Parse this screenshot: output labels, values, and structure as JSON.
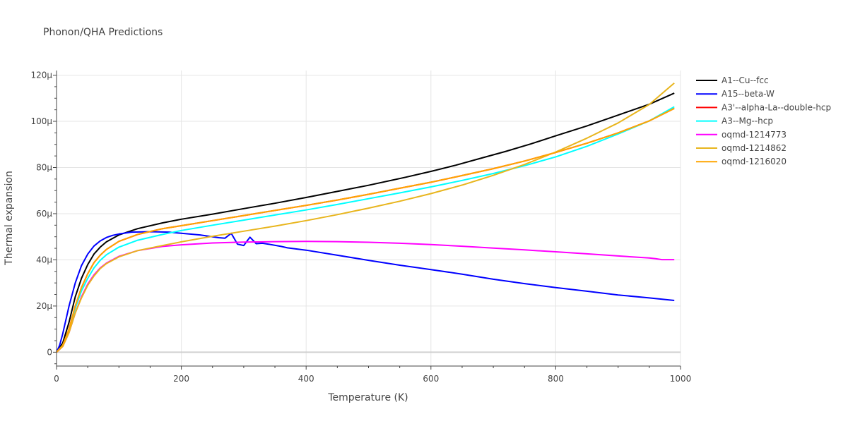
{
  "chart_data": {
    "type": "line",
    "title": "Phonon/QHA Predictions",
    "xlabel": "Temperature (K)",
    "ylabel": "Thermal expansion",
    "xlim": [
      0,
      1000
    ],
    "ylim": [
      -6,
      122
    ],
    "x_ticks": [
      0,
      200,
      400,
      600,
      800,
      1000
    ],
    "x_tick_labels": [
      "0",
      "200",
      "400",
      "600",
      "800",
      "1000"
    ],
    "y_ticks": [
      0,
      20,
      40,
      60,
      80,
      100,
      120
    ],
    "y_tick_labels": [
      "0",
      "20μ",
      "40μ",
      "60μ",
      "80μ",
      "100μ",
      "120μ"
    ],
    "grid": true,
    "legend_position": "right",
    "series": [
      {
        "name": "A1--Cu--fcc",
        "color": "#000000",
        "points": [
          [
            0,
            0
          ],
          [
            10,
            4
          ],
          [
            20,
            13
          ],
          [
            30,
            24
          ],
          [
            40,
            32
          ],
          [
            50,
            38
          ],
          [
            60,
            42.5
          ],
          [
            70,
            45.5
          ],
          [
            80,
            47.8
          ],
          [
            100,
            50.8
          ],
          [
            130,
            53.5
          ],
          [
            170,
            56
          ],
          [
            200,
            57.6
          ],
          [
            250,
            59.8
          ],
          [
            300,
            62.2
          ],
          [
            350,
            64.5
          ],
          [
            400,
            67
          ],
          [
            460,
            70.2
          ],
          [
            500,
            72.3
          ],
          [
            560,
            75.8
          ],
          [
            600,
            78.3
          ],
          [
            640,
            81
          ],
          [
            680,
            84
          ],
          [
            720,
            87
          ],
          [
            760,
            90.2
          ],
          [
            800,
            93.7
          ],
          [
            850,
            98
          ],
          [
            900,
            102.7
          ],
          [
            950,
            107.4
          ],
          [
            990,
            112.2
          ]
        ]
      },
      {
        "name": "A15--beta-W",
        "color": "#0000ff",
        "points": [
          [
            0,
            0
          ],
          [
            5,
            3
          ],
          [
            10,
            8
          ],
          [
            20,
            20
          ],
          [
            30,
            30
          ],
          [
            40,
            37.5
          ],
          [
            50,
            42.5
          ],
          [
            60,
            46
          ],
          [
            70,
            48.2
          ],
          [
            80,
            49.7
          ],
          [
            90,
            50.6
          ],
          [
            100,
            51.2
          ],
          [
            120,
            52
          ],
          [
            150,
            52.2
          ],
          [
            180,
            52
          ],
          [
            200,
            51.5
          ],
          [
            230,
            50.8
          ],
          [
            260,
            49.6
          ],
          [
            270,
            49.4
          ],
          [
            280,
            51.5
          ],
          [
            290,
            46.8
          ],
          [
            300,
            46.2
          ],
          [
            310,
            49.8
          ],
          [
            320,
            47
          ],
          [
            330,
            47.2
          ],
          [
            340,
            46.8
          ],
          [
            360,
            45.8
          ],
          [
            370,
            45.2
          ],
          [
            400,
            44.2
          ],
          [
            450,
            42
          ],
          [
            500,
            39.8
          ],
          [
            550,
            37.7
          ],
          [
            600,
            35.8
          ],
          [
            650,
            33.8
          ],
          [
            700,
            31.6
          ],
          [
            750,
            29.7
          ],
          [
            800,
            28
          ],
          [
            850,
            26.4
          ],
          [
            900,
            24.8
          ],
          [
            950,
            23.5
          ],
          [
            990,
            22.4
          ]
        ]
      },
      {
        "name": "A3'--alpha-La--double-hcp",
        "color": "#ff0000",
        "points": [
          [
            0,
            0
          ],
          [
            10,
            3
          ],
          [
            20,
            10
          ],
          [
            30,
            20
          ],
          [
            40,
            28
          ],
          [
            50,
            34
          ],
          [
            60,
            38.8
          ],
          [
            70,
            42
          ],
          [
            80,
            44.5
          ],
          [
            100,
            48
          ],
          [
            130,
            51
          ],
          [
            170,
            53.5
          ],
          [
            200,
            54.8
          ],
          [
            250,
            57
          ],
          [
            300,
            59.2
          ],
          [
            350,
            61.4
          ],
          [
            400,
            63.6
          ],
          [
            450,
            65.9
          ],
          [
            500,
            68.4
          ],
          [
            550,
            71
          ],
          [
            600,
            73.6
          ],
          [
            650,
            76.5
          ],
          [
            700,
            79.5
          ],
          [
            750,
            82.8
          ],
          [
            800,
            86.5
          ],
          [
            850,
            90.5
          ],
          [
            900,
            95
          ],
          [
            950,
            100.2
          ],
          [
            990,
            105.6
          ]
        ]
      },
      {
        "name": "A3--Mg--hcp",
        "color": "#00ffff",
        "points": [
          [
            0,
            0
          ],
          [
            10,
            3
          ],
          [
            20,
            9.5
          ],
          [
            30,
            19
          ],
          [
            40,
            26.5
          ],
          [
            50,
            32
          ],
          [
            60,
            36.5
          ],
          [
            70,
            39.8
          ],
          [
            80,
            42.2
          ],
          [
            100,
            45.5
          ],
          [
            130,
            48.5
          ],
          [
            170,
            51
          ],
          [
            200,
            52.7
          ],
          [
            250,
            55
          ],
          [
            300,
            57.2
          ],
          [
            350,
            59.4
          ],
          [
            400,
            61.6
          ],
          [
            450,
            64
          ],
          [
            500,
            66.5
          ],
          [
            550,
            69
          ],
          [
            600,
            71.6
          ],
          [
            650,
            74.4
          ],
          [
            700,
            77.4
          ],
          [
            750,
            80.8
          ],
          [
            800,
            84.6
          ],
          [
            850,
            89.2
          ],
          [
            900,
            94.5
          ],
          [
            950,
            100.2
          ],
          [
            990,
            106.3
          ]
        ]
      },
      {
        "name": "oqmd-1214773",
        "color": "#ff00ff",
        "points": [
          [
            0,
            0
          ],
          [
            10,
            2.5
          ],
          [
            20,
            8.5
          ],
          [
            30,
            17
          ],
          [
            40,
            24
          ],
          [
            50,
            29.5
          ],
          [
            60,
            33.5
          ],
          [
            70,
            36.5
          ],
          [
            80,
            38.6
          ],
          [
            100,
            41.5
          ],
          [
            130,
            44
          ],
          [
            170,
            45.8
          ],
          [
            200,
            46.5
          ],
          [
            250,
            47.3
          ],
          [
            300,
            47.7
          ],
          [
            350,
            47.9
          ],
          [
            400,
            48
          ],
          [
            450,
            47.9
          ],
          [
            500,
            47.6
          ],
          [
            550,
            47.2
          ],
          [
            600,
            46.6
          ],
          [
            650,
            45.9
          ],
          [
            700,
            45.1
          ],
          [
            750,
            44.3
          ],
          [
            800,
            43.5
          ],
          [
            850,
            42.6
          ],
          [
            900,
            41.7
          ],
          [
            950,
            40.8
          ],
          [
            960,
            40.5
          ],
          [
            970,
            40.1
          ],
          [
            990,
            40.1
          ]
        ]
      },
      {
        "name": "oqmd-1214862",
        "color": "#e8b51d",
        "points": [
          [
            0,
            0
          ],
          [
            10,
            2.5
          ],
          [
            20,
            8.5
          ],
          [
            30,
            17
          ],
          [
            40,
            23.5
          ],
          [
            50,
            29
          ],
          [
            60,
            33
          ],
          [
            70,
            36.2
          ],
          [
            80,
            38.4
          ],
          [
            100,
            41.3
          ],
          [
            130,
            44
          ],
          [
            170,
            46.2
          ],
          [
            200,
            47.8
          ],
          [
            250,
            50.2
          ],
          [
            300,
            52.4
          ],
          [
            350,
            54.6
          ],
          [
            400,
            57
          ],
          [
            450,
            59.6
          ],
          [
            500,
            62.4
          ],
          [
            550,
            65.4
          ],
          [
            600,
            68.7
          ],
          [
            650,
            72.4
          ],
          [
            700,
            76.6
          ],
          [
            750,
            81.3
          ],
          [
            800,
            86.7
          ],
          [
            850,
            92.7
          ],
          [
            900,
            99.3
          ],
          [
            950,
            107.3
          ],
          [
            990,
            116.6
          ]
        ]
      },
      {
        "name": "oqmd-1216020",
        "color": "#ffa500",
        "points": [
          [
            0,
            0
          ],
          [
            10,
            3
          ],
          [
            20,
            10
          ],
          [
            30,
            20
          ],
          [
            40,
            28
          ],
          [
            50,
            34
          ],
          [
            60,
            38.8
          ],
          [
            70,
            42
          ],
          [
            80,
            44.5
          ],
          [
            100,
            48
          ],
          [
            130,
            51
          ],
          [
            170,
            53.5
          ],
          [
            200,
            54.8
          ],
          [
            250,
            57
          ],
          [
            300,
            59.2
          ],
          [
            350,
            61.4
          ],
          [
            400,
            63.6
          ],
          [
            450,
            65.9
          ],
          [
            500,
            68.4
          ],
          [
            550,
            71
          ],
          [
            600,
            73.6
          ],
          [
            650,
            76.5
          ],
          [
            700,
            79.5
          ],
          [
            750,
            82.8
          ],
          [
            800,
            86.5
          ],
          [
            850,
            90.5
          ],
          [
            900,
            95
          ],
          [
            950,
            100.2
          ],
          [
            990,
            105.6
          ]
        ]
      }
    ]
  }
}
